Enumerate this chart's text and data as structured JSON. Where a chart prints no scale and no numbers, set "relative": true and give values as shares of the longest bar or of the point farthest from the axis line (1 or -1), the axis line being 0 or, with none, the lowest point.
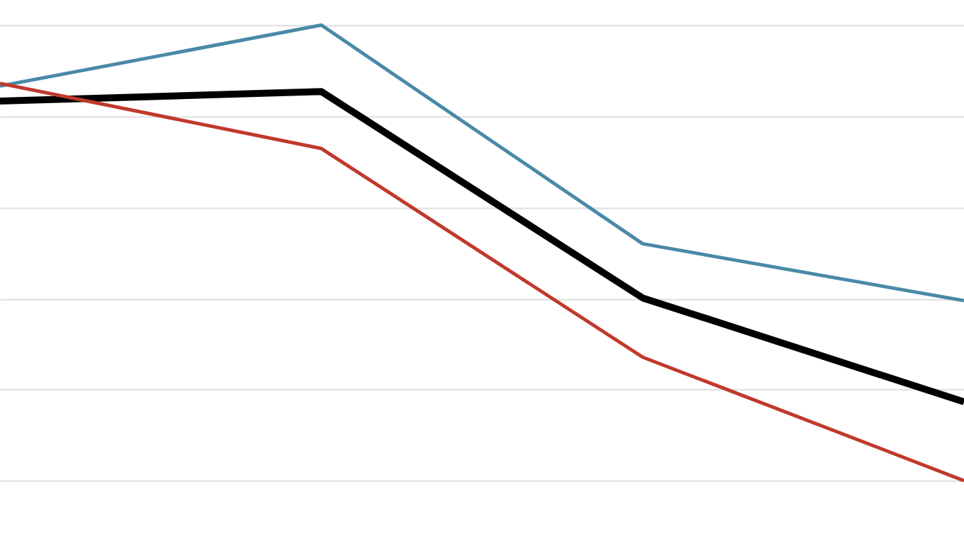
{
  "chart_data": {
    "type": "line",
    "relative": true,
    "grid": "y",
    "categories": [
      null,
      null,
      null,
      null
    ],
    "series": [
      {
        "color": "#4a89a8",
        "values": [
          0.866,
          1,
          0.52,
          0.395
        ]
      },
      {
        "color": "#000000",
        "values": [
          0.833,
          0.854,
          0.401,
          0.173
        ]
      },
      {
        "color": "#c0392b",
        "values": [
          0.872,
          0.729,
          0.271,
          0
        ]
      }
    ]
  }
}
